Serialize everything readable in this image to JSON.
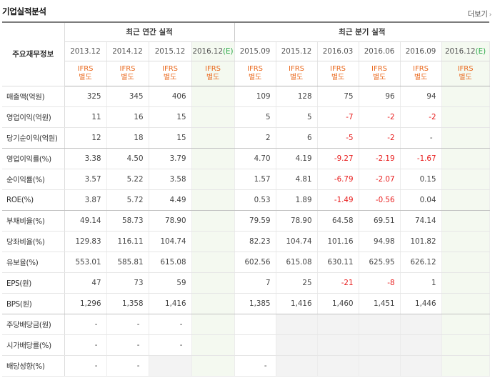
{
  "header": {
    "title": "기업실적분석",
    "more_label": "더보기"
  },
  "table": {
    "row_header": "주요재무정보",
    "annual_group": "최근 연간 실적",
    "quarter_group": "최근 분기 실적",
    "periods": [
      {
        "label": "2013.12",
        "est": ""
      },
      {
        "label": "2014.12",
        "est": ""
      },
      {
        "label": "2015.12",
        "est": ""
      },
      {
        "label": "2016.12",
        "est": "(E)"
      },
      {
        "label": "2015.09",
        "est": ""
      },
      {
        "label": "2015.12",
        "est": ""
      },
      {
        "label": "2016.03",
        "est": ""
      },
      {
        "label": "2016.06",
        "est": ""
      },
      {
        "label": "2016.09",
        "est": ""
      },
      {
        "label": "2016.12",
        "est": "(E)"
      }
    ],
    "basis_line1": "IFRS",
    "basis_line2": "별도",
    "rows": [
      {
        "label": "매출액(억원)",
        "values": [
          "325",
          "345",
          "406",
          "",
          "109",
          "128",
          "75",
          "96",
          "94",
          ""
        ]
      },
      {
        "label": "영업이익(억원)",
        "values": [
          "11",
          "16",
          "15",
          "",
          "5",
          "5",
          "-7",
          "-2",
          "-2",
          ""
        ]
      },
      {
        "label": "당기순이익(억원)",
        "values": [
          "12",
          "18",
          "15",
          "",
          "2",
          "6",
          "-5",
          "-2",
          "-",
          ""
        ]
      },
      {
        "label": "영업이익률(%)",
        "values": [
          "3.38",
          "4.50",
          "3.79",
          "",
          "4.70",
          "4.19",
          "-9.27",
          "-2.19",
          "-1.67",
          ""
        ]
      },
      {
        "label": "순이익률(%)",
        "values": [
          "3.57",
          "5.22",
          "3.58",
          "",
          "1.57",
          "4.81",
          "-6.79",
          "-2.07",
          "0.15",
          ""
        ]
      },
      {
        "label": "ROE(%)",
        "values": [
          "3.87",
          "5.72",
          "4.49",
          "",
          "0.53",
          "1.89",
          "-1.49",
          "-0.56",
          "0.04",
          ""
        ]
      },
      {
        "label": "부채비율(%)",
        "values": [
          "49.14",
          "58.73",
          "78.90",
          "",
          "79.59",
          "78.90",
          "64.58",
          "69.51",
          "74.14",
          ""
        ]
      },
      {
        "label": "당좌비율(%)",
        "values": [
          "129.83",
          "116.11",
          "104.74",
          "",
          "82.23",
          "104.74",
          "101.16",
          "94.98",
          "101.82",
          ""
        ]
      },
      {
        "label": "유보율(%)",
        "values": [
          "553.01",
          "585.81",
          "615.08",
          "",
          "602.56",
          "615.08",
          "630.11",
          "625.95",
          "626.12",
          ""
        ]
      },
      {
        "label": "EPS(원)",
        "values": [
          "47",
          "73",
          "59",
          "",
          "7",
          "25",
          "-21",
          "-8",
          "1",
          ""
        ]
      },
      {
        "label": "BPS(원)",
        "values": [
          "1,296",
          "1,358",
          "1,416",
          "",
          "1,385",
          "1,416",
          "1,460",
          "1,451",
          "1,446",
          ""
        ]
      },
      {
        "label": "주당배당금(원)",
        "values": [
          "-",
          "-",
          "-",
          "",
          "",
          "",
          "",
          "",
          "",
          ""
        ]
      },
      {
        "label": "시가배당률(%)",
        "values": [
          "-",
          "-",
          "-",
          "",
          "",
          "",
          "",
          "",
          "",
          ""
        ]
      },
      {
        "label": "배당성향(%)",
        "values": [
          "-",
          "-",
          "",
          "",
          "-",
          "",
          "",
          "",
          "",
          ""
        ]
      }
    ]
  },
  "colors": {
    "negative": "#e81c1c",
    "basis": "#ea6a1f",
    "estimate_mark": "#28a745",
    "estimate_bg": "#f4f9f0",
    "na_bg": "#f3f3f3"
  }
}
